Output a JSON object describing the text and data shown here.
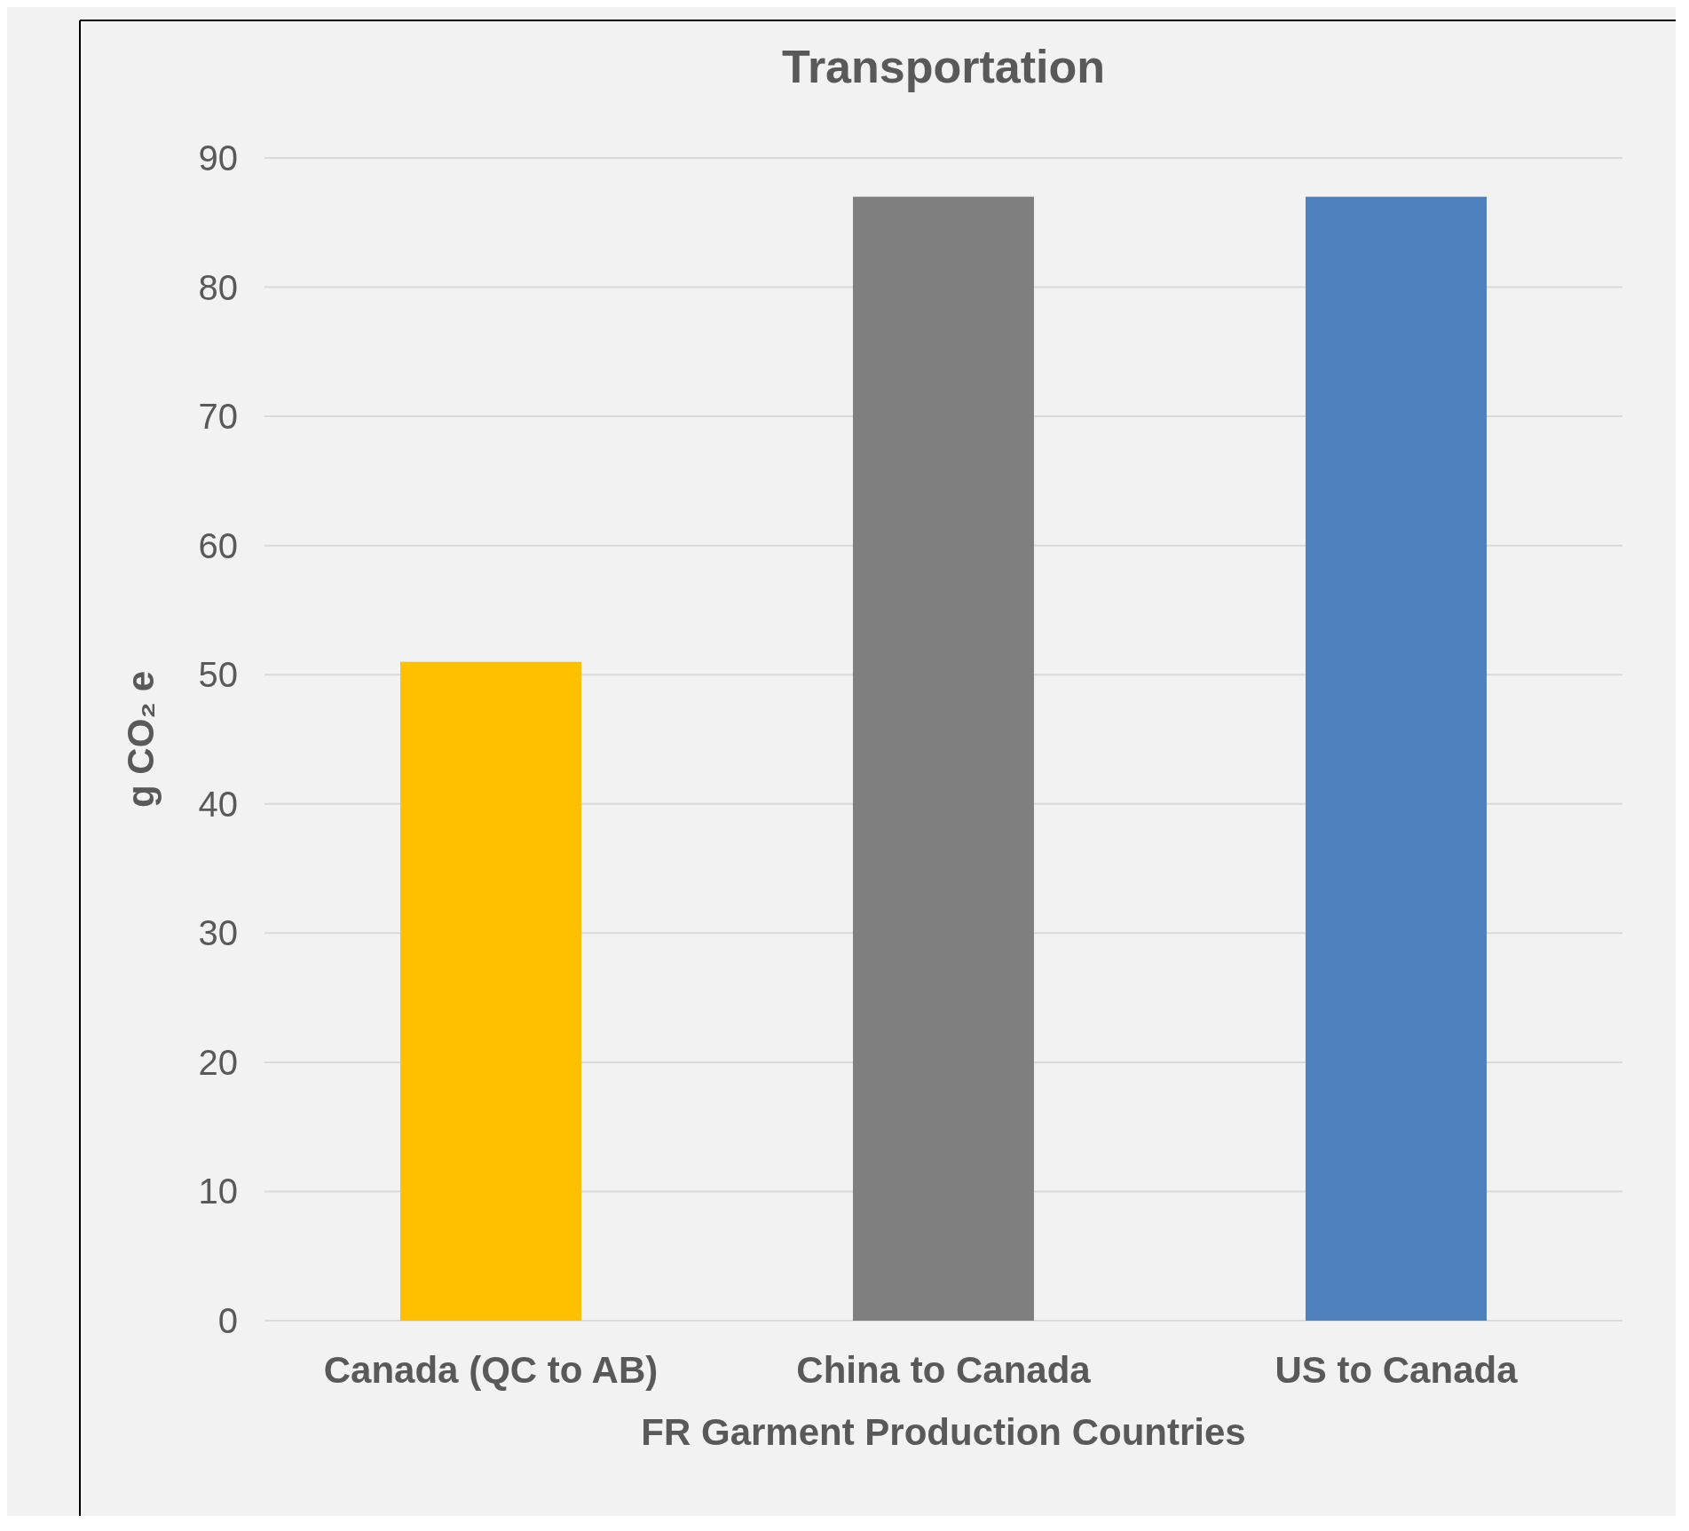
{
  "chart_data": {
    "type": "bar",
    "title": "Transportation",
    "xlabel": "FR Garment Production Countries",
    "ylabel": "g CO₂ e",
    "categories": [
      "Canada (QC to AB)",
      "China to Canada",
      "US to Canada"
    ],
    "values": [
      51,
      87,
      87
    ],
    "colors": [
      "#ffc000",
      "#7f7f7f",
      "#4f81bd"
    ],
    "ylim": [
      0,
      90
    ],
    "yticks": [
      0,
      10,
      20,
      30,
      40,
      50,
      60,
      70,
      80,
      90
    ],
    "grid": true
  }
}
